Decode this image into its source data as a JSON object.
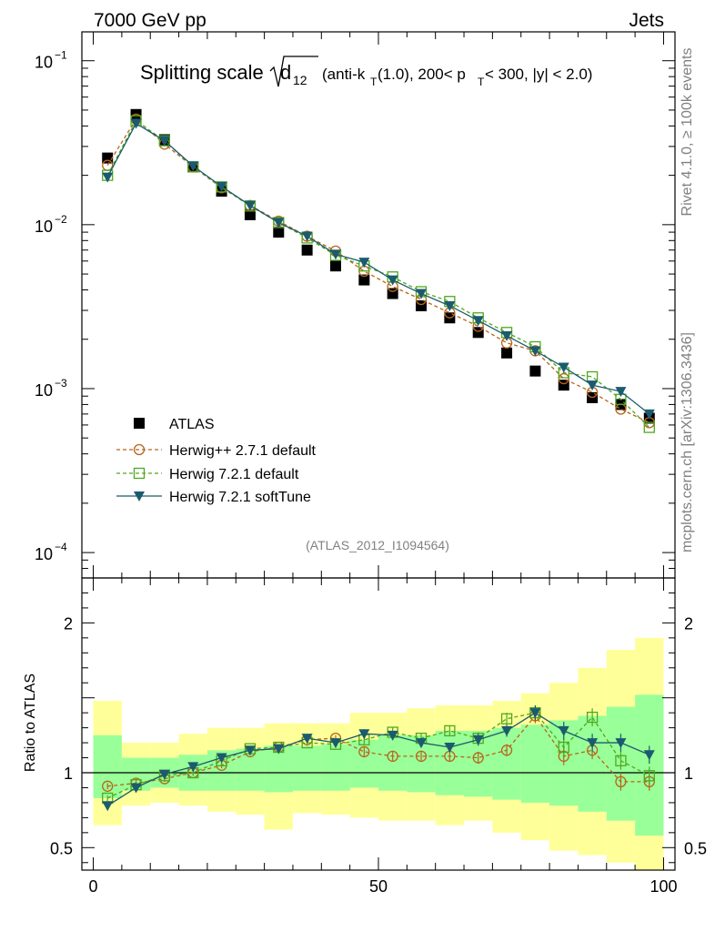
{
  "header": {
    "left": "7000 GeV pp",
    "right": "Jets"
  },
  "title": {
    "main": "Splitting scale",
    "sub_d": "d",
    "sub_12": "12",
    "detail_a": "(anti-k",
    "detail_t1": "T",
    "detail_b": "(1.0), 200< p",
    "detail_t2": "T",
    "detail_c": " < 300, |y| < 2.0)"
  },
  "side_labels": {
    "rivet": "Rivet 4.1.0, ≥ 100k events",
    "mcplots": "mcplots.cern.ch [arXiv:1306.3436]"
  },
  "analysis_label": "(ATLAS_2012_I1094564)",
  "ratio_ylabel": "Ratio to ATLAS",
  "colors": {
    "data": "#000000",
    "herwigpp": "#b8651b",
    "herwig721": "#4fa81f",
    "softtune": "#1b5b6e",
    "band_inner": "#99ff99",
    "band_outer": "#ffff99"
  },
  "chart_data": {
    "type": "scatter",
    "main_y_scale": "log",
    "main_ylim": [
      7e-05,
      0.15
    ],
    "main_yticks": [
      "10",
      "10",
      "10",
      "10"
    ],
    "main_ytick_exps": [
      "−1",
      "−2",
      "−3",
      "−4"
    ],
    "main_ytick_values": [
      0.1,
      0.01,
      0.001,
      0.0001
    ],
    "xlim": [
      -2,
      102
    ],
    "xticks": [
      "0",
      "50",
      "100"
    ],
    "xtick_values": [
      0,
      50,
      100
    ],
    "ratio_ylim": [
      0.35,
      2.3
    ],
    "ratio_yticks": [
      "2",
      "1",
      "0.5"
    ],
    "ratio_ytick_values": [
      2,
      1,
      0.5
    ],
    "x": [
      2.5,
      7.5,
      12.5,
      17.5,
      22.5,
      27.5,
      32.5,
      37.5,
      42.5,
      47.5,
      52.5,
      57.5,
      62.5,
      67.5,
      72.5,
      77.5,
      82.5,
      87.5,
      92.5,
      97.5
    ],
    "data": {
      "name": "ATLAS",
      "values": [
        0.0255,
        0.047,
        0.033,
        0.0225,
        0.016,
        0.0115,
        0.009,
        0.007,
        0.0056,
        0.0046,
        0.0038,
        0.0032,
        0.0027,
        0.0022,
        0.00165,
        0.00128,
        0.00105,
        0.00088,
        0.0008,
        0.00066
      ]
    },
    "band_inner": [
      [
        0.83,
        1.25
      ],
      [
        0.88,
        1.1
      ],
      [
        0.9,
        1.1
      ],
      [
        0.88,
        1.12
      ],
      [
        0.88,
        1.15
      ],
      [
        0.88,
        1.16
      ],
      [
        0.87,
        1.18
      ],
      [
        0.88,
        1.18
      ],
      [
        0.88,
        1.19
      ],
      [
        0.9,
        1.22
      ],
      [
        0.88,
        1.25
      ],
      [
        0.87,
        1.25
      ],
      [
        0.85,
        1.28
      ],
      [
        0.84,
        1.28
      ],
      [
        0.82,
        1.3
      ],
      [
        0.8,
        1.32
      ],
      [
        0.78,
        1.35
      ],
      [
        0.74,
        1.38
      ],
      [
        0.68,
        1.44
      ],
      [
        0.58,
        1.52
      ]
    ],
    "band_outer": [
      [
        0.65,
        1.48
      ],
      [
        0.78,
        1.2
      ],
      [
        0.8,
        1.2
      ],
      [
        0.78,
        1.26
      ],
      [
        0.74,
        1.3
      ],
      [
        0.72,
        1.3
      ],
      [
        0.62,
        1.33
      ],
      [
        0.73,
        1.33
      ],
      [
        0.72,
        1.33
      ],
      [
        0.7,
        1.4
      ],
      [
        0.68,
        1.4
      ],
      [
        0.68,
        1.43
      ],
      [
        0.65,
        1.45
      ],
      [
        0.68,
        1.45
      ],
      [
        0.6,
        1.48
      ],
      [
        0.55,
        1.53
      ],
      [
        0.48,
        1.6
      ],
      [
        0.45,
        1.7
      ],
      [
        0.4,
        1.82
      ],
      [
        0.3,
        1.9
      ]
    ],
    "series": [
      {
        "name": "Herwig++ 2.7.1 default",
        "style": "dashed-circle-open",
        "values": [
          0.023,
          0.044,
          0.031,
          0.0225,
          0.0168,
          0.0131,
          0.0105,
          0.0085,
          0.0069,
          0.0052,
          0.0042,
          0.0035,
          0.0029,
          0.0024,
          0.0019,
          0.0017,
          0.00115,
          0.00095,
          0.00075,
          0.00062
        ],
        "ratio": [
          0.91,
          0.93,
          0.96,
          1.0,
          1.05,
          1.14,
          1.17,
          1.22,
          1.23,
          1.14,
          1.11,
          1.11,
          1.11,
          1.1,
          1.15,
          1.38,
          1.11,
          1.15,
          0.94,
          0.94
        ],
        "ratio_err": [
          0.02,
          0.02,
          0.02,
          0.02,
          0.02,
          0.02,
          0.02,
          0.02,
          0.02,
          0.03,
          0.03,
          0.03,
          0.03,
          0.04,
          0.04,
          0.05,
          0.06,
          0.06,
          0.06,
          0.06
        ]
      },
      {
        "name": "Herwig 7.2.1 default",
        "style": "dashed-square-open",
        "values": [
          0.02,
          0.043,
          0.0325,
          0.0225,
          0.017,
          0.013,
          0.0103,
          0.0083,
          0.0065,
          0.0056,
          0.0048,
          0.0039,
          0.0034,
          0.0027,
          0.0022,
          0.0018,
          0.00125,
          0.00118,
          0.00086,
          0.00058
        ],
        "ratio": [
          0.83,
          0.92,
          0.98,
          1.0,
          1.08,
          1.16,
          1.17,
          1.2,
          1.19,
          1.22,
          1.27,
          1.23,
          1.28,
          1.23,
          1.36,
          1.4,
          1.17,
          1.37,
          1.08,
          0.98
        ],
        "ratio_err": [
          0.02,
          0.02,
          0.02,
          0.02,
          0.02,
          0.02,
          0.02,
          0.02,
          0.02,
          0.03,
          0.03,
          0.03,
          0.03,
          0.04,
          0.04,
          0.05,
          0.06,
          0.06,
          0.06,
          0.06
        ]
      },
      {
        "name": "Herwig 7.2.1 softTune",
        "style": "solid-triangle-filled",
        "values": [
          0.0195,
          0.0415,
          0.0325,
          0.0228,
          0.0171,
          0.0131,
          0.0103,
          0.0085,
          0.0066,
          0.0059,
          0.0046,
          0.0038,
          0.0032,
          0.0026,
          0.0021,
          0.0017,
          0.00135,
          0.00105,
          0.00096,
          0.0007
        ],
        "ratio": [
          0.78,
          0.9,
          0.99,
          1.04,
          1.1,
          1.15,
          1.16,
          1.23,
          1.2,
          1.26,
          1.25,
          1.2,
          1.17,
          1.22,
          1.28,
          1.4,
          1.28,
          1.2,
          1.2,
          1.12
        ],
        "ratio_err": [
          0.02,
          0.02,
          0.02,
          0.02,
          0.02,
          0.02,
          0.02,
          0.02,
          0.02,
          0.03,
          0.03,
          0.03,
          0.03,
          0.04,
          0.04,
          0.05,
          0.06,
          0.06,
          0.06,
          0.06
        ]
      }
    ]
  }
}
